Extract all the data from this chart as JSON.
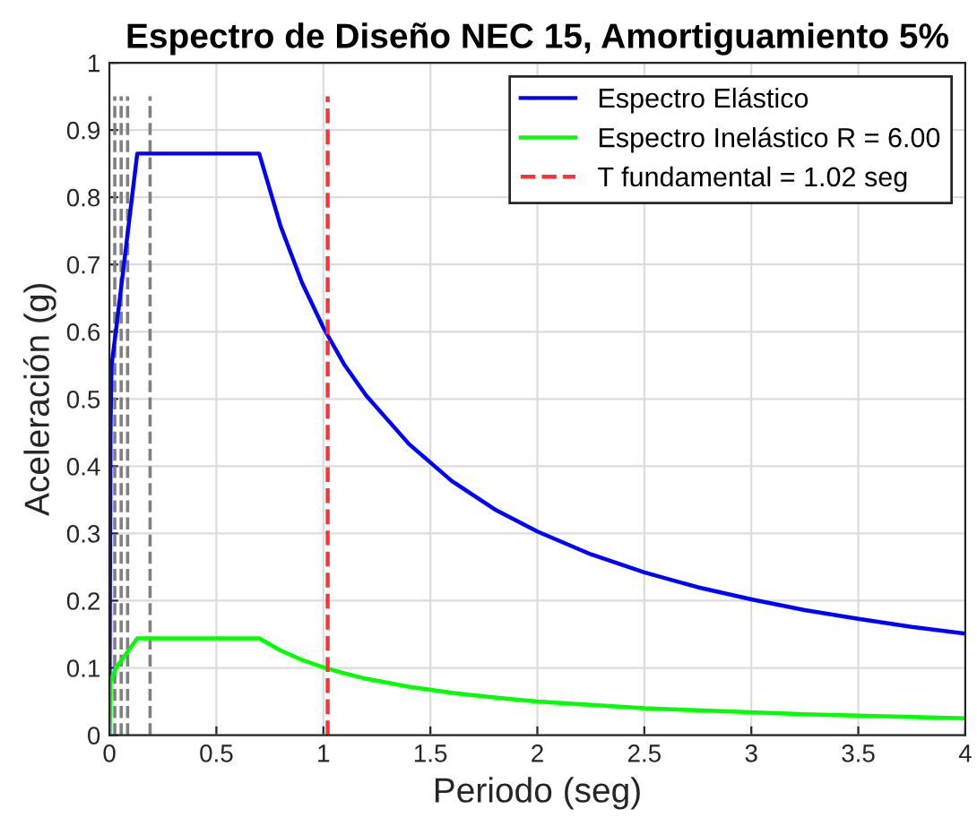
{
  "chart_data": {
    "type": "line",
    "title": "Espectro de Diseño NEC 15, Amortiguamiento 5%",
    "xlabel": "Periodo (seg)",
    "ylabel": "Aceleración (g)",
    "xlim": [
      0,
      4
    ],
    "ylim": [
      0,
      1
    ],
    "xticks": [
      0,
      0.5,
      1,
      1.5,
      2,
      2.5,
      3,
      3.5,
      4
    ],
    "yticks": [
      0,
      0.1,
      0.2,
      0.3,
      0.4,
      0.5,
      0.6,
      0.7,
      0.8,
      0.9,
      1
    ],
    "grid": true,
    "legend": "top right",
    "marker": "none",
    "series": [
      {
        "name": "Espectro Elástico",
        "color": "#0000ff",
        "line_style": "solid",
        "x": [
          0,
          0.005,
          0.01,
          0.03,
          0.13,
          0.7,
          0.8,
          0.9,
          1.0,
          1.1,
          1.2,
          1.4,
          1.6,
          1.8,
          2.0,
          2.25,
          2.5,
          2.75,
          3.0,
          3.25,
          3.5,
          3.75,
          4.0
        ],
        "values": [
          0,
          0.45,
          0.55,
          0.6,
          0.865,
          0.865,
          0.757,
          0.673,
          0.606,
          0.55,
          0.505,
          0.433,
          0.378,
          0.336,
          0.303,
          0.269,
          0.242,
          0.22,
          0.202,
          0.186,
          0.173,
          0.161,
          0.151
        ]
      },
      {
        "name": "Espectro Inelástico R = 6.00",
        "color": "#00ff00",
        "line_style": "solid",
        "x": [
          0,
          0.005,
          0.03,
          0.13,
          0.7,
          0.8,
          0.9,
          1.0,
          1.1,
          1.2,
          1.4,
          1.6,
          1.8,
          2.0,
          2.25,
          2.5,
          2.75,
          3.0,
          3.25,
          3.5,
          3.75,
          4.0
        ],
        "values": [
          0,
          0.08,
          0.1,
          0.144,
          0.144,
          0.126,
          0.112,
          0.101,
          0.092,
          0.084,
          0.072,
          0.063,
          0.056,
          0.05,
          0.045,
          0.04,
          0.037,
          0.034,
          0.031,
          0.029,
          0.027,
          0.025
        ]
      },
      {
        "name": "T fundamental = 1.02 seg",
        "color": "#ff3333",
        "line_style": "dashed",
        "x": [
          1.02,
          1.02
        ],
        "values": [
          0,
          0.95
        ]
      },
      {
        "color": "#808080",
        "line_style": "dashed",
        "x": [
          0.025,
          0.025
        ],
        "values": [
          0,
          0.95
        ]
      },
      {
        "color": "#808080",
        "line_style": "dashed",
        "x": [
          0.055,
          0.055
        ],
        "values": [
          0,
          0.95
        ]
      },
      {
        "color": "#808080",
        "line_style": "dashed",
        "x": [
          0.085,
          0.085
        ],
        "values": [
          0,
          0.95
        ]
      },
      {
        "color": "#808080",
        "line_style": "dashed",
        "x": [
          0.19,
          0.19
        ],
        "values": [
          0,
          0.95
        ]
      }
    ]
  }
}
